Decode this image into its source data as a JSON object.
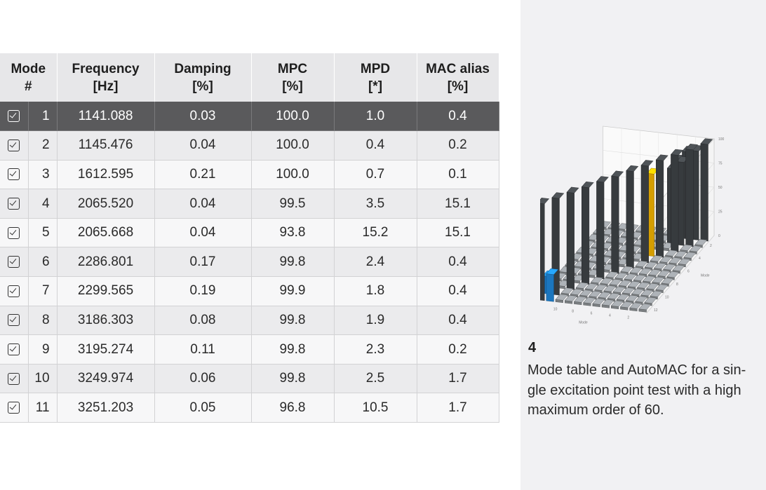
{
  "table": {
    "headers": [
      {
        "line1": "Mode",
        "line2": "#"
      },
      {
        "line1": "Frequency",
        "line2": "[Hz]"
      },
      {
        "line1": "Damping",
        "line2": "[%]"
      },
      {
        "line1": "MPC",
        "line2": "[%]"
      },
      {
        "line1": "MPD",
        "line2": "[*]"
      },
      {
        "line1": "MAC alias",
        "line2": "[%]"
      }
    ],
    "rows": [
      {
        "mode": "1",
        "frequency": "1141.088",
        "damping": "0.03",
        "mpc": "100.0",
        "mpd": "1.0",
        "mac_alias": "0.4",
        "checked": true,
        "selected": true
      },
      {
        "mode": "2",
        "frequency": "1145.476",
        "damping": "0.04",
        "mpc": "100.0",
        "mpd": "0.4",
        "mac_alias": "0.2",
        "checked": true,
        "selected": false
      },
      {
        "mode": "3",
        "frequency": "1612.595",
        "damping": "0.21",
        "mpc": "100.0",
        "mpd": "0.7",
        "mac_alias": "0.1",
        "checked": true,
        "selected": false
      },
      {
        "mode": "4",
        "frequency": "2065.520",
        "damping": "0.04",
        "mpc": "99.5",
        "mpd": "3.5",
        "mac_alias": "15.1",
        "checked": true,
        "selected": false
      },
      {
        "mode": "5",
        "frequency": "2065.668",
        "damping": "0.04",
        "mpc": "93.8",
        "mpd": "15.2",
        "mac_alias": "15.1",
        "checked": true,
        "selected": false
      },
      {
        "mode": "6",
        "frequency": "2286.801",
        "damping": "0.17",
        "mpc": "99.8",
        "mpd": "2.4",
        "mac_alias": "0.4",
        "checked": true,
        "selected": false
      },
      {
        "mode": "7",
        "frequency": "2299.565",
        "damping": "0.19",
        "mpc": "99.9",
        "mpd": "1.8",
        "mac_alias": "0.4",
        "checked": true,
        "selected": false
      },
      {
        "mode": "8",
        "frequency": "3186.303",
        "damping": "0.08",
        "mpc": "99.8",
        "mpd": "1.9",
        "mac_alias": "0.4",
        "checked": true,
        "selected": false
      },
      {
        "mode": "9",
        "frequency": "3195.274",
        "damping": "0.11",
        "mpc": "99.8",
        "mpd": "2.3",
        "mac_alias": "0.2",
        "checked": true,
        "selected": false
      },
      {
        "mode": "10",
        "frequency": "3249.974",
        "damping": "0.06",
        "mpc": "99.8",
        "mpd": "2.5",
        "mac_alias": "1.7",
        "checked": true,
        "selected": false
      },
      {
        "mode": "11",
        "frequency": "3251.203",
        "damping": "0.05",
        "mpc": "96.8",
        "mpd": "10.5",
        "mac_alias": "1.7",
        "checked": true,
        "selected": false
      }
    ]
  },
  "automac": {
    "z_ticks": [
      "100",
      "75",
      "50",
      "25",
      "0"
    ],
    "x_ticks": [
      "2",
      "4",
      "6",
      "8",
      "10",
      "12"
    ],
    "y_ticks": [
      "2",
      "4",
      "6",
      "8",
      "10",
      "12"
    ],
    "x_label": "Mode",
    "y_label": "Mode",
    "colors": {
      "bar": "#3f4346",
      "highlight": "#f2b400",
      "accent": "#1f86d8",
      "floor": "#8b8f93"
    },
    "diagonal": [
      100,
      100,
      100,
      100,
      100,
      100,
      100,
      100,
      100,
      100,
      100,
      100
    ],
    "off_diagonal": [
      {
        "row": 4,
        "col": 5,
        "value": 85,
        "color": "highlight"
      },
      {
        "row": 12,
        "col": 11,
        "value": 28,
        "color": "accent"
      },
      {
        "row": 11,
        "col": 12,
        "value": 18,
        "color": "accent"
      },
      {
        "row": 1,
        "col": 2,
        "value": 92,
        "color": "bar"
      },
      {
        "row": 1,
        "col": 3,
        "value": 90,
        "color": "bar"
      },
      {
        "row": 2,
        "col": 3,
        "value": 86,
        "color": "bar"
      },
      {
        "row": 1,
        "col": 4,
        "value": 80,
        "color": "bar"
      },
      {
        "row": 2,
        "col": 4,
        "value": 78,
        "color": "bar"
      }
    ]
  },
  "figure": {
    "number": "4",
    "caption_lines": [
      "Mode table and AutoMAC for a sin-",
      "gle excitation point test with a high",
      "maximum order of 60."
    ]
  }
}
